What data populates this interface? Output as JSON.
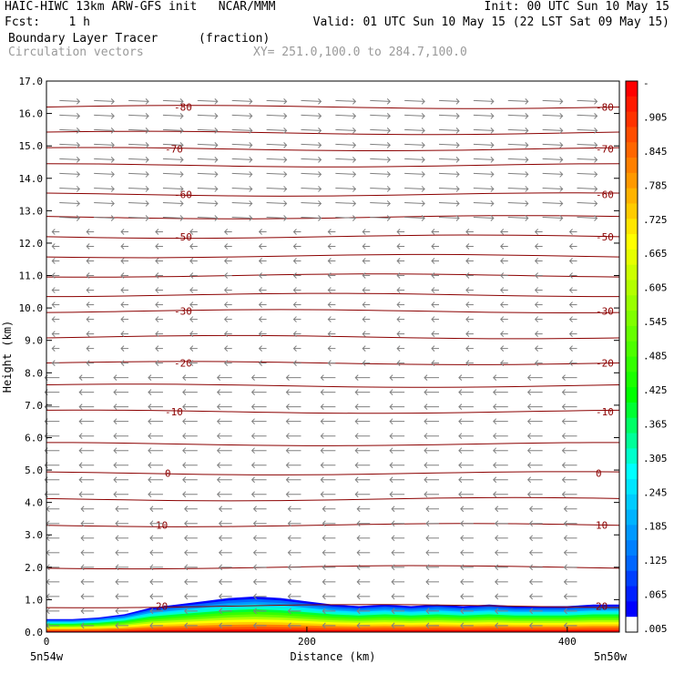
{
  "header": {
    "line1_left": "HAIC-HIWC 13km ARW-GFS init   NCAR/MMM",
    "line1_right": "Init: 00 UTC Sun 10 May 15",
    "line2_left": "Fcst:    1 h",
    "line2_right": "Valid: 01 UTC Sun 10 May 15 (22 LST Sat 09 May 15)",
    "field_name": "Boundary Layer Tracer",
    "field_units": "(fraction)",
    "overlay_name": "Circulation vectors",
    "cross_section": "XY= 251.0,100.0 to 284.7,100.0"
  },
  "chart_data": {
    "type": "heatmap",
    "title": "Boundary Layer Tracer",
    "xlabel": "Distance (km)",
    "ylabel": "Height (km)",
    "xlim": [
      0,
      440
    ],
    "ylim": [
      0,
      17
    ],
    "x_ticks": [
      0,
      200,
      400
    ],
    "y_ticks": [
      "0.0",
      "1.0",
      "2.0",
      "3.0",
      "4.0",
      "5.0",
      "6.0",
      "7.0",
      "8.0",
      "9.0",
      "10.0",
      "11.0",
      "12.0",
      "13.0",
      "14.0",
      "15.0",
      "16.0",
      "17.0"
    ],
    "x_end_labels": [
      "5n54w",
      "5n50w"
    ],
    "colorbar_labels": [
      "-",
      ".905",
      ".845",
      ".785",
      ".725",
      ".665",
      ".605",
      ".545",
      ".485",
      ".425",
      ".365",
      ".305",
      ".245",
      ".185",
      ".125",
      ".065",
      ".005"
    ],
    "colorbar_colors": [
      "#ff0000",
      "#ff1a00",
      "#ff3300",
      "#ff4d00",
      "#ff6600",
      "#ff8000",
      "#ff9900",
      "#ffb300",
      "#ffcc00",
      "#ffe600",
      "#ffff00",
      "#e6ff00",
      "#ccff00",
      "#b3ff00",
      "#99ff00",
      "#80ff00",
      "#66ff00",
      "#4dff00",
      "#33ff00",
      "#1aff00",
      "#00ff00",
      "#00ff33",
      "#00ff66",
      "#00ff99",
      "#00ffcc",
      "#00ffff",
      "#00e6ff",
      "#00ccff",
      "#00b3ff",
      "#0099ff",
      "#0080ff",
      "#0066ff",
      "#0040ff",
      "#0020ff",
      "#0000ff",
      "#ffffff"
    ],
    "contour_color": "#8b0000",
    "vector_color": "#808080",
    "temperature_contours": [
      {
        "label": "-80",
        "height_km": 16.2
      },
      {
        "label": "-70",
        "height_km": 15.4
      },
      {
        "label": "-60",
        "height_km": 14.5
      },
      {
        "label": "-50",
        "height_km": 13.5
      },
      {
        "label": "-30",
        "height_km": 12.3
      },
      {
        "label": "-20",
        "height_km": 10.4
      },
      {
        "label": "-10",
        "height_km": 9.9
      },
      {
        "label": "0",
        "height_km": 9.1
      },
      {
        "label": "10",
        "height_km": 8.3
      },
      {
        "label": "20",
        "height_km": 7.6
      }
    ],
    "extra_contours_km": [
      16.2,
      15.4,
      14.9,
      14.4,
      13.5,
      12.8,
      12.2,
      11.6,
      11.0,
      10.4,
      9.9,
      9.1,
      8.3,
      7.6,
      6.8,
      5.8,
      4.9,
      4.1,
      3.3,
      2.0,
      0.8
    ],
    "labeled_contours": [
      {
        "label": "-80",
        "height_km": 16.2
      },
      {
        "label": "-70",
        "height_km": 14.9
      },
      {
        "label": "-60",
        "height_km": 13.5
      },
      {
        "label": "-50",
        "height_km": 12.2
      },
      {
        "label": "-30",
        "height_km": 9.9
      },
      {
        "label": "-20",
        "height_km": 8.3
      },
      {
        "label": "-10",
        "height_km": 6.8
      },
      {
        "label": "0",
        "height_km": 4.9
      },
      {
        "label": "10",
        "height_km": 3.3
      },
      {
        "label": "20",
        "height_km": 0.8
      }
    ],
    "tracer_layer": {
      "top_km": [
        0.4,
        0.4,
        0.45,
        0.55,
        0.75,
        0.85,
        0.95,
        1.05,
        1.1,
        1.05,
        0.95,
        0.85,
        0.8,
        0.85,
        0.8,
        0.85,
        0.8,
        0.85,
        0.8,
        0.8,
        0.8,
        0.85,
        0.85
      ],
      "x_km": [
        0,
        20,
        40,
        60,
        80,
        100,
        120,
        140,
        160,
        180,
        200,
        220,
        240,
        260,
        280,
        300,
        320,
        340,
        360,
        380,
        400,
        420,
        440
      ]
    }
  }
}
